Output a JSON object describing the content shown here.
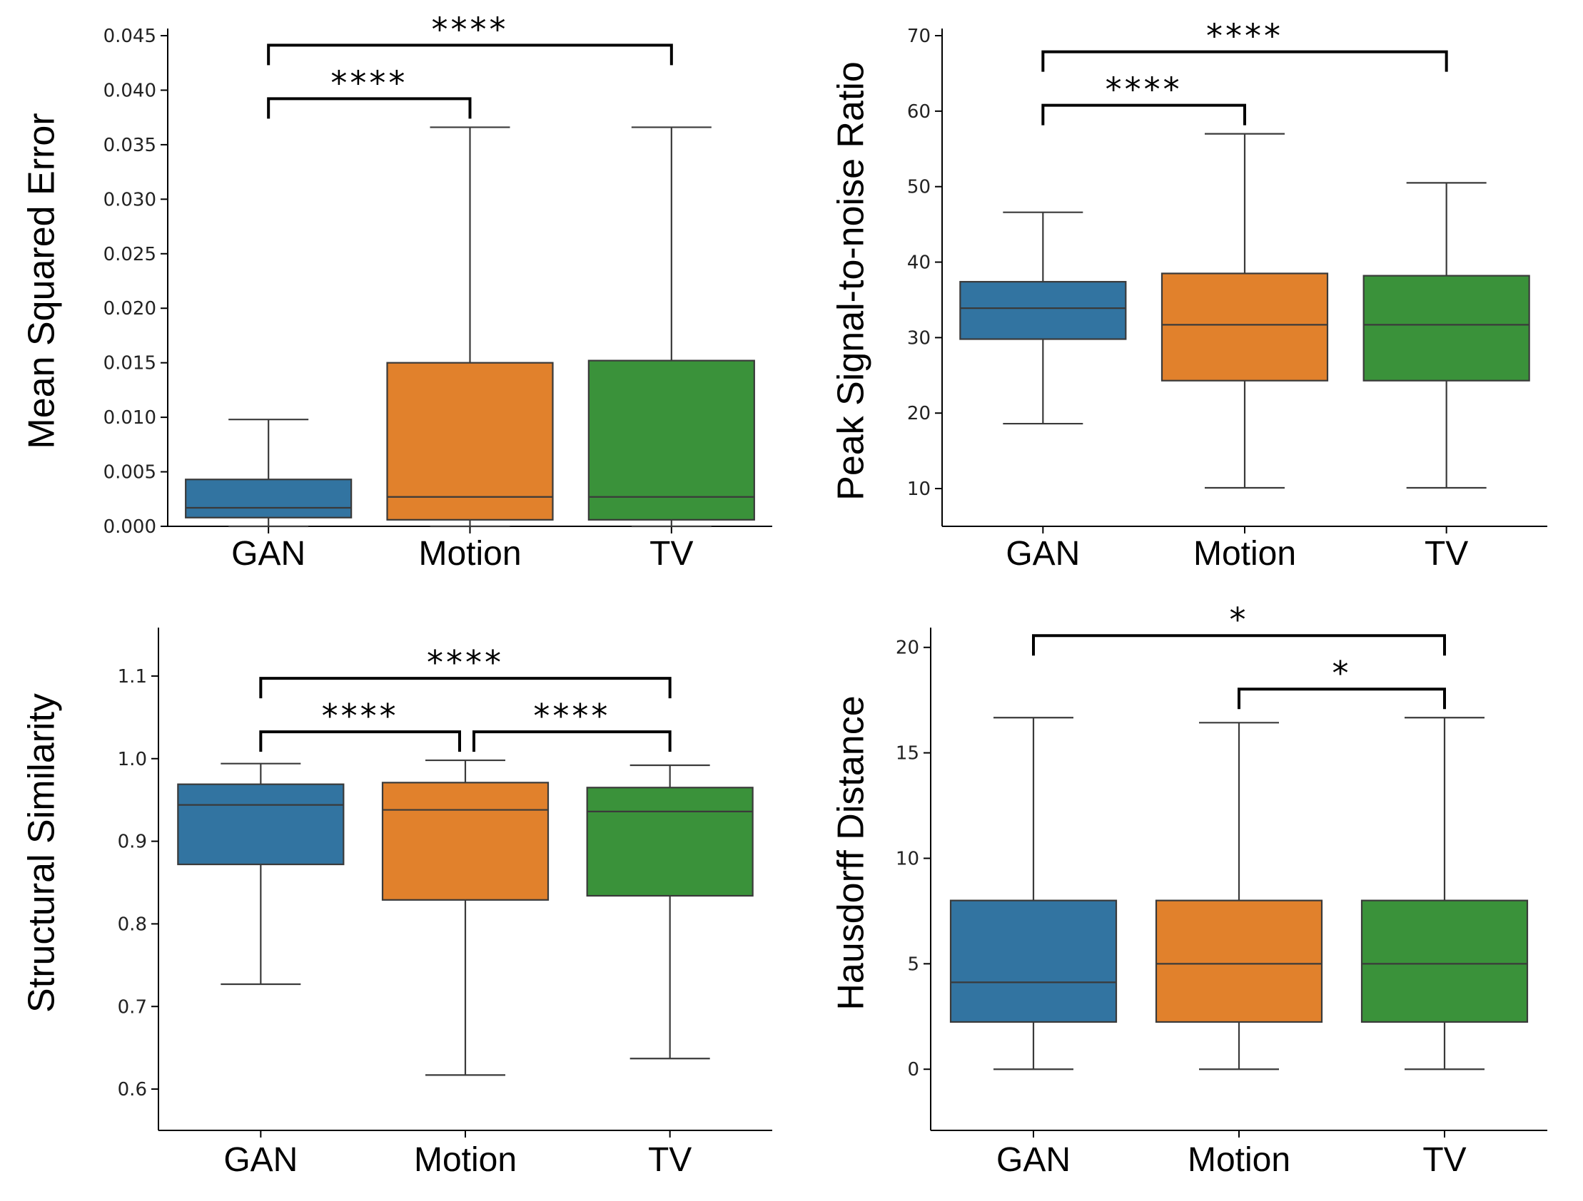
{
  "chart_data": [
    {
      "type": "box",
      "ylabel": "Mean Squared Error",
      "xlabel": "",
      "categories": [
        "GAN",
        "Motion",
        "TV"
      ],
      "colors": [
        "#3274a1",
        "#e1812c",
        "#3a923a"
      ],
      "ylim": [
        0.0,
        0.045
      ],
      "yticks": [
        0.0,
        0.005,
        0.01,
        0.015,
        0.02,
        0.025,
        0.03,
        0.035,
        0.04,
        0.045
      ],
      "ytick_labels": [
        "0.000",
        "0.005",
        "0.010",
        "0.015",
        "0.020",
        "0.025",
        "0.030",
        "0.035",
        "0.040",
        "0.045"
      ],
      "boxes": [
        {
          "category": "GAN",
          "whislo": 0.0,
          "q1": 0.0008,
          "med": 0.0017,
          "q3": 0.0043,
          "whishi": 0.0098
        },
        {
          "category": "Motion",
          "whislo": 0.0,
          "q1": 0.0006,
          "med": 0.0027,
          "q3": 0.015,
          "whishi": 0.0366
        },
        {
          "category": "TV",
          "whislo": 0.0,
          "q1": 0.0006,
          "med": 0.0027,
          "q3": 0.0152,
          "whishi": 0.0366
        }
      ],
      "annotations": [
        {
          "from": "GAN",
          "to": "Motion",
          "label": "****",
          "level": 0
        },
        {
          "from": "GAN",
          "to": "TV",
          "label": "****",
          "level": 1
        }
      ],
      "grid": false
    },
    {
      "type": "box",
      "ylabel": "Peak Signal-to-noise Ratio",
      "xlabel": "",
      "categories": [
        "GAN",
        "Motion",
        "TV"
      ],
      "colors": [
        "#3274a1",
        "#e1812c",
        "#3a923a"
      ],
      "ylim": [
        5,
        70
      ],
      "yticks": [
        10,
        20,
        30,
        40,
        50,
        60,
        70
      ],
      "ytick_labels": [
        "10",
        "20",
        "30",
        "40",
        "50",
        "60",
        "70"
      ],
      "boxes": [
        {
          "category": "GAN",
          "whislo": 18.6,
          "q1": 29.8,
          "med": 33.9,
          "q3": 37.4,
          "whishi": 46.6
        },
        {
          "category": "Motion",
          "whislo": 10.1,
          "q1": 24.3,
          "med": 31.7,
          "q3": 38.5,
          "whishi": 57.0
        },
        {
          "category": "TV",
          "whislo": 10.1,
          "q1": 24.3,
          "med": 31.7,
          "q3": 38.2,
          "whishi": 50.5
        }
      ],
      "annotations": [
        {
          "from": "GAN",
          "to": "Motion",
          "label": "****",
          "level": 0
        },
        {
          "from": "GAN",
          "to": "TV",
          "label": "****",
          "level": 1
        }
      ],
      "grid": false
    },
    {
      "type": "box",
      "ylabel": "Structural Similarity",
      "xlabel": "",
      "categories": [
        "GAN",
        "Motion",
        "TV"
      ],
      "colors": [
        "#3274a1",
        "#e1812c",
        "#3a923a"
      ],
      "ylim": [
        0.55,
        1.15
      ],
      "yticks": [
        0.6,
        0.7,
        0.8,
        0.9,
        1.0,
        1.1
      ],
      "ytick_labels": [
        "0.6",
        "0.7",
        "0.8",
        "0.9",
        "1.0",
        "1.1"
      ],
      "boxes": [
        {
          "category": "GAN",
          "whislo": 0.727,
          "q1": 0.872,
          "med": 0.944,
          "q3": 0.969,
          "whishi": 0.994
        },
        {
          "category": "Motion",
          "whislo": 0.617,
          "q1": 0.829,
          "med": 0.938,
          "q3": 0.971,
          "whishi": 0.998
        },
        {
          "category": "TV",
          "whislo": 0.637,
          "q1": 0.834,
          "med": 0.936,
          "q3": 0.965,
          "whishi": 0.992
        }
      ],
      "annotations": [
        {
          "from": "GAN",
          "to": "Motion",
          "label": "****",
          "level": 0
        },
        {
          "from": "Motion",
          "to": "TV",
          "label": "****",
          "level": 0
        },
        {
          "from": "GAN",
          "to": "TV",
          "label": "****",
          "level": 1
        }
      ],
      "grid": false
    },
    {
      "type": "box",
      "ylabel": "Hausdorff Distance",
      "xlabel": "",
      "categories": [
        "GAN",
        "Motion",
        "TV"
      ],
      "colors": [
        "#3274a1",
        "#e1812c",
        "#3a923a"
      ],
      "ylim": [
        -2.9,
        20.6
      ],
      "yticks": [
        0,
        5,
        10,
        15,
        20
      ],
      "ytick_labels": [
        "0",
        "5",
        "10",
        "15",
        "20"
      ],
      "boxes": [
        {
          "category": "GAN",
          "whislo": 0.0,
          "q1": 2.24,
          "med": 4.12,
          "q3": 8.0,
          "whishi": 16.67
        },
        {
          "category": "Motion",
          "whislo": 0.0,
          "q1": 2.24,
          "med": 5.0,
          "q3": 8.0,
          "whishi": 16.43
        },
        {
          "category": "TV",
          "whislo": 0.0,
          "q1": 2.24,
          "med": 5.0,
          "q3": 8.0,
          "whishi": 16.67
        }
      ],
      "annotations": [
        {
          "from": "Motion",
          "to": "TV",
          "label": "*",
          "level": 0
        },
        {
          "from": "GAN",
          "to": "TV",
          "label": "*",
          "level": 1
        }
      ],
      "grid": false
    }
  ]
}
